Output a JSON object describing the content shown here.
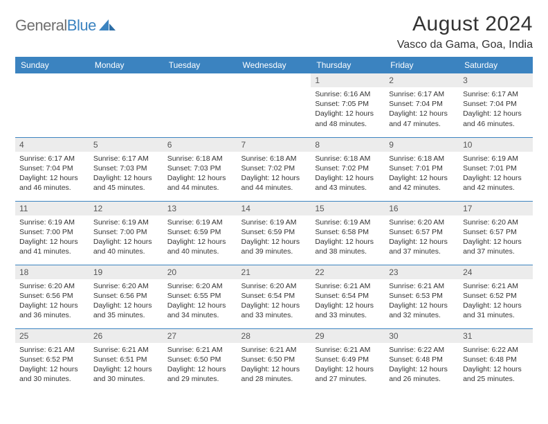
{
  "brand": {
    "grey": "General",
    "blue": "Blue"
  },
  "title": "August 2024",
  "location": "Vasco da Gama, Goa, India",
  "colors": {
    "header_bg": "#3b83c0",
    "header_text": "#ffffff",
    "daynum_bg": "#ececec",
    "daynum_text": "#555555",
    "body_text": "#333333",
    "rule": "#3b83c0",
    "page_bg": "#ffffff",
    "logo_grey": "#6f6f6f",
    "logo_blue": "#3b83c0"
  },
  "typography": {
    "title_fontsize": 30,
    "location_fontsize": 16,
    "dayheader_fontsize": 12,
    "daynum_fontsize": 12,
    "body_fontsize": 10.5,
    "font_family": "Arial"
  },
  "day_headers": [
    "Sunday",
    "Monday",
    "Tuesday",
    "Wednesday",
    "Thursday",
    "Friday",
    "Saturday"
  ],
  "weeks": [
    [
      {
        "empty": true
      },
      {
        "empty": true
      },
      {
        "empty": true
      },
      {
        "empty": true
      },
      {
        "day": "1",
        "sunrise": "Sunrise: 6:16 AM",
        "sunset": "Sunset: 7:05 PM",
        "daylight": "Daylight: 12 hours and 48 minutes."
      },
      {
        "day": "2",
        "sunrise": "Sunrise: 6:17 AM",
        "sunset": "Sunset: 7:04 PM",
        "daylight": "Daylight: 12 hours and 47 minutes."
      },
      {
        "day": "3",
        "sunrise": "Sunrise: 6:17 AM",
        "sunset": "Sunset: 7:04 PM",
        "daylight": "Daylight: 12 hours and 46 minutes."
      }
    ],
    [
      {
        "day": "4",
        "sunrise": "Sunrise: 6:17 AM",
        "sunset": "Sunset: 7:04 PM",
        "daylight": "Daylight: 12 hours and 46 minutes."
      },
      {
        "day": "5",
        "sunrise": "Sunrise: 6:17 AM",
        "sunset": "Sunset: 7:03 PM",
        "daylight": "Daylight: 12 hours and 45 minutes."
      },
      {
        "day": "6",
        "sunrise": "Sunrise: 6:18 AM",
        "sunset": "Sunset: 7:03 PM",
        "daylight": "Daylight: 12 hours and 44 minutes."
      },
      {
        "day": "7",
        "sunrise": "Sunrise: 6:18 AM",
        "sunset": "Sunset: 7:02 PM",
        "daylight": "Daylight: 12 hours and 44 minutes."
      },
      {
        "day": "8",
        "sunrise": "Sunrise: 6:18 AM",
        "sunset": "Sunset: 7:02 PM",
        "daylight": "Daylight: 12 hours and 43 minutes."
      },
      {
        "day": "9",
        "sunrise": "Sunrise: 6:18 AM",
        "sunset": "Sunset: 7:01 PM",
        "daylight": "Daylight: 12 hours and 42 minutes."
      },
      {
        "day": "10",
        "sunrise": "Sunrise: 6:19 AM",
        "sunset": "Sunset: 7:01 PM",
        "daylight": "Daylight: 12 hours and 42 minutes."
      }
    ],
    [
      {
        "day": "11",
        "sunrise": "Sunrise: 6:19 AM",
        "sunset": "Sunset: 7:00 PM",
        "daylight": "Daylight: 12 hours and 41 minutes."
      },
      {
        "day": "12",
        "sunrise": "Sunrise: 6:19 AM",
        "sunset": "Sunset: 7:00 PM",
        "daylight": "Daylight: 12 hours and 40 minutes."
      },
      {
        "day": "13",
        "sunrise": "Sunrise: 6:19 AM",
        "sunset": "Sunset: 6:59 PM",
        "daylight": "Daylight: 12 hours and 40 minutes."
      },
      {
        "day": "14",
        "sunrise": "Sunrise: 6:19 AM",
        "sunset": "Sunset: 6:59 PM",
        "daylight": "Daylight: 12 hours and 39 minutes."
      },
      {
        "day": "15",
        "sunrise": "Sunrise: 6:19 AM",
        "sunset": "Sunset: 6:58 PM",
        "daylight": "Daylight: 12 hours and 38 minutes."
      },
      {
        "day": "16",
        "sunrise": "Sunrise: 6:20 AM",
        "sunset": "Sunset: 6:57 PM",
        "daylight": "Daylight: 12 hours and 37 minutes."
      },
      {
        "day": "17",
        "sunrise": "Sunrise: 6:20 AM",
        "sunset": "Sunset: 6:57 PM",
        "daylight": "Daylight: 12 hours and 37 minutes."
      }
    ],
    [
      {
        "day": "18",
        "sunrise": "Sunrise: 6:20 AM",
        "sunset": "Sunset: 6:56 PM",
        "daylight": "Daylight: 12 hours and 36 minutes."
      },
      {
        "day": "19",
        "sunrise": "Sunrise: 6:20 AM",
        "sunset": "Sunset: 6:56 PM",
        "daylight": "Daylight: 12 hours and 35 minutes."
      },
      {
        "day": "20",
        "sunrise": "Sunrise: 6:20 AM",
        "sunset": "Sunset: 6:55 PM",
        "daylight": "Daylight: 12 hours and 34 minutes."
      },
      {
        "day": "21",
        "sunrise": "Sunrise: 6:20 AM",
        "sunset": "Sunset: 6:54 PM",
        "daylight": "Daylight: 12 hours and 33 minutes."
      },
      {
        "day": "22",
        "sunrise": "Sunrise: 6:21 AM",
        "sunset": "Sunset: 6:54 PM",
        "daylight": "Daylight: 12 hours and 33 minutes."
      },
      {
        "day": "23",
        "sunrise": "Sunrise: 6:21 AM",
        "sunset": "Sunset: 6:53 PM",
        "daylight": "Daylight: 12 hours and 32 minutes."
      },
      {
        "day": "24",
        "sunrise": "Sunrise: 6:21 AM",
        "sunset": "Sunset: 6:52 PM",
        "daylight": "Daylight: 12 hours and 31 minutes."
      }
    ],
    [
      {
        "day": "25",
        "sunrise": "Sunrise: 6:21 AM",
        "sunset": "Sunset: 6:52 PM",
        "daylight": "Daylight: 12 hours and 30 minutes."
      },
      {
        "day": "26",
        "sunrise": "Sunrise: 6:21 AM",
        "sunset": "Sunset: 6:51 PM",
        "daylight": "Daylight: 12 hours and 30 minutes."
      },
      {
        "day": "27",
        "sunrise": "Sunrise: 6:21 AM",
        "sunset": "Sunset: 6:50 PM",
        "daylight": "Daylight: 12 hours and 29 minutes."
      },
      {
        "day": "28",
        "sunrise": "Sunrise: 6:21 AM",
        "sunset": "Sunset: 6:50 PM",
        "daylight": "Daylight: 12 hours and 28 minutes."
      },
      {
        "day": "29",
        "sunrise": "Sunrise: 6:21 AM",
        "sunset": "Sunset: 6:49 PM",
        "daylight": "Daylight: 12 hours and 27 minutes."
      },
      {
        "day": "30",
        "sunrise": "Sunrise: 6:22 AM",
        "sunset": "Sunset: 6:48 PM",
        "daylight": "Daylight: 12 hours and 26 minutes."
      },
      {
        "day": "31",
        "sunrise": "Sunrise: 6:22 AM",
        "sunset": "Sunset: 6:48 PM",
        "daylight": "Daylight: 12 hours and 25 minutes."
      }
    ]
  ]
}
